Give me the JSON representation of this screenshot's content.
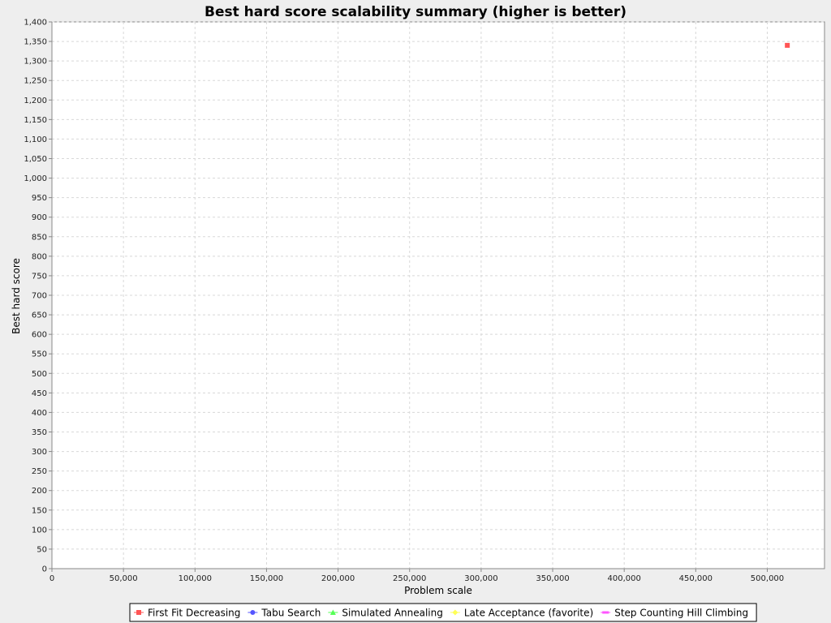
{
  "chart_data": {
    "type": "scatter",
    "title": "Best hard score scalability summary (higher is better)",
    "xlabel": "Problem scale",
    "ylabel": "Best hard score",
    "xlim": [
      0,
      540000
    ],
    "ylim": [
      0,
      1400
    ],
    "x_ticks": [
      0,
      50000,
      100000,
      150000,
      200000,
      250000,
      300000,
      350000,
      400000,
      450000,
      500000
    ],
    "y_ticks": [
      0,
      50,
      100,
      150,
      200,
      250,
      300,
      350,
      400,
      450,
      500,
      550,
      600,
      650,
      700,
      750,
      800,
      850,
      900,
      950,
      1000,
      1050,
      1100,
      1150,
      1200,
      1250,
      1300,
      1350,
      1400
    ],
    "grid": true,
    "legend_position": "bottom",
    "series": [
      {
        "name": "First Fit Decreasing",
        "color": "#ff5555",
        "marker": "square",
        "points": [
          [
            514000,
            1340
          ]
        ]
      },
      {
        "name": "Tabu Search",
        "color": "#5555ff",
        "marker": "circle",
        "points": []
      },
      {
        "name": "Simulated Annealing",
        "color": "#55ff55",
        "marker": "triangle",
        "points": []
      },
      {
        "name": "Late Acceptance (favorite)",
        "color": "#ffff55",
        "marker": "diamond",
        "points": []
      },
      {
        "name": "Step Counting Hill Climbing",
        "color": "#ff55ff",
        "marker": "rect",
        "points": []
      }
    ]
  }
}
